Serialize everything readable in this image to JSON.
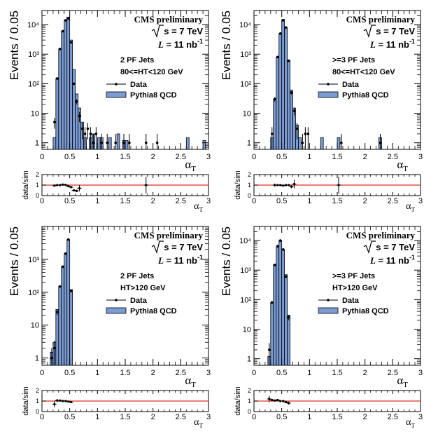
{
  "chart_data": [
    {
      "type": "bar",
      "panel": "top-left",
      "title": "",
      "label_cms": "CMS preliminary",
      "label_energy": "s = 7 TeV",
      "label_lumi_pre": "L",
      "label_lumi_val": " = 11 nb",
      "label_lumi_sup": "-1",
      "label_jets": "2 PF Jets",
      "label_cut": "80<=HT<120 GeV",
      "legend_data": "Data",
      "legend_sim": "Pythia8 QCD",
      "ylabel": "Events / 0.05",
      "xlabel": "α",
      "xlabel_sub": "T",
      "yscale": "log",
      "xlim": [
        0,
        3
      ],
      "ylim": [
        0.6,
        30000
      ],
      "ytick_labels": [
        "1",
        "10",
        "10²",
        "10³",
        "10⁴"
      ],
      "xtick_labels": [
        "0",
        "0.5",
        "1",
        "1.5",
        "2",
        "2.5",
        "3"
      ],
      "sim_hist": [
        {
          "x": 0.2,
          "v": 1.5
        },
        {
          "x": 0.25,
          "v": 150
        },
        {
          "x": 0.3,
          "v": 1500
        },
        {
          "x": 0.35,
          "v": 6000
        },
        {
          "x": 0.4,
          "v": 14000
        },
        {
          "x": 0.45,
          "v": 18000
        },
        {
          "x": 0.5,
          "v": 3000
        },
        {
          "x": 0.55,
          "v": 300
        },
        {
          "x": 0.6,
          "v": 45
        },
        {
          "x": 0.65,
          "v": 15
        },
        {
          "x": 0.7,
          "v": 5
        },
        {
          "x": 0.75,
          "v": 1.5
        },
        {
          "x": 0.85,
          "v": 1.5
        },
        {
          "x": 0.9,
          "v": 2
        },
        {
          "x": 1.0,
          "v": 1.5
        },
        {
          "x": 1.05,
          "v": 1.5
        },
        {
          "x": 1.2,
          "v": 1.5
        },
        {
          "x": 1.35,
          "v": 2
        },
        {
          "x": 1.45,
          "v": 1.2
        },
        {
          "x": 1.5,
          "v": 1.2
        },
        {
          "x": 2.6,
          "v": 1.5
        },
        {
          "x": 2.9,
          "v": 1.2
        }
      ],
      "data_points": [
        {
          "x": 0.225,
          "y": 5,
          "e": 2
        },
        {
          "x": 0.275,
          "y": 150,
          "e": 12
        },
        {
          "x": 0.325,
          "y": 1500,
          "e": 40
        },
        {
          "x": 0.375,
          "y": 6000,
          "e": 80
        },
        {
          "x": 0.425,
          "y": 14000,
          "e": 120
        },
        {
          "x": 0.475,
          "y": 16000,
          "e": 130
        },
        {
          "x": 0.525,
          "y": 2500,
          "e": 50
        },
        {
          "x": 0.575,
          "y": 100,
          "e": 10
        },
        {
          "x": 0.625,
          "y": 25,
          "e": 5
        },
        {
          "x": 0.675,
          "y": 8,
          "e": 3
        },
        {
          "x": 0.725,
          "y": 3,
          "e": 1.7
        },
        {
          "x": 0.775,
          "y": 2,
          "e": 1.4
        },
        {
          "x": 0.825,
          "y": 3,
          "e": 1.7
        },
        {
          "x": 0.875,
          "y": 2,
          "e": 1.4
        },
        {
          "x": 0.925,
          "y": 1,
          "e": 1
        },
        {
          "x": 0.975,
          "y": 2,
          "e": 1.4
        },
        {
          "x": 1.075,
          "y": 1,
          "e": 1
        },
        {
          "x": 1.175,
          "y": 1,
          "e": 1
        },
        {
          "x": 1.325,
          "y": 1,
          "e": 1
        },
        {
          "x": 1.475,
          "y": 1,
          "e": 1
        },
        {
          "x": 1.575,
          "y": 1,
          "e": 1
        },
        {
          "x": 1.875,
          "y": 1,
          "e": 1
        },
        {
          "x": 2.075,
          "y": 1,
          "e": 1
        }
      ],
      "ratio": {
        "ylabel": "data/sim",
        "ylim": [
          0,
          2
        ],
        "ytick_labels": [
          "0",
          "1",
          "2"
        ],
        "points": [
          {
            "x": 0.225,
            "y": 0.95,
            "e": 0.1
          },
          {
            "x": 0.275,
            "y": 1.0,
            "e": 0.06
          },
          {
            "x": 0.325,
            "y": 1.0,
            "e": 0.03
          },
          {
            "x": 0.375,
            "y": 1.05,
            "e": 0.02
          },
          {
            "x": 0.425,
            "y": 1.02,
            "e": 0.02
          },
          {
            "x": 0.475,
            "y": 0.9,
            "e": 0.02
          },
          {
            "x": 0.525,
            "y": 0.8,
            "e": 0.03
          },
          {
            "x": 0.575,
            "y": 0.5,
            "e": 0.07
          },
          {
            "x": 0.625,
            "y": 0.45,
            "e": 0.1
          },
          {
            "x": 0.675,
            "y": 0.7,
            "e": 0.3
          },
          {
            "x": 1.875,
            "y": 1.0,
            "e": 0.8
          }
        ]
      }
    },
    {
      "type": "bar",
      "panel": "top-right",
      "title": "",
      "label_cms": "CMS preliminary",
      "label_energy": "s = 7 TeV",
      "label_lumi_pre": "L",
      "label_lumi_val": " = 11 nb",
      "label_lumi_sup": "-1",
      "label_jets": ">=3 PF Jets",
      "label_cut": "80<=HT<120 GeV",
      "legend_data": "Data",
      "legend_sim": "Pythia8 QCD",
      "ylabel": "Events / 0.05",
      "xlabel": "α",
      "xlabel_sub": "T",
      "yscale": "log",
      "xlim": [
        0,
        3
      ],
      "ylim": [
        0.6,
        30000
      ],
      "ytick_labels": [
        "1",
        "10",
        "10²",
        "10³",
        "10⁴"
      ],
      "xtick_labels": [
        "0",
        "0.5",
        "1",
        "1.5",
        "2",
        "2.5",
        "3"
      ],
      "sim_hist": [
        {
          "x": 0.3,
          "v": 1.5
        },
        {
          "x": 0.35,
          "v": 30
        },
        {
          "x": 0.4,
          "v": 800
        },
        {
          "x": 0.45,
          "v": 5000
        },
        {
          "x": 0.5,
          "v": 15000
        },
        {
          "x": 0.55,
          "v": 8000
        },
        {
          "x": 0.6,
          "v": 600
        },
        {
          "x": 0.65,
          "v": 60
        },
        {
          "x": 0.7,
          "v": 15
        },
        {
          "x": 0.75,
          "v": 4
        },
        {
          "x": 0.8,
          "v": 1.5
        },
        {
          "x": 1.2,
          "v": 1.5
        },
        {
          "x": 1.5,
          "v": 1.5
        },
        {
          "x": 2.25,
          "v": 1.5
        }
      ],
      "data_points": [
        {
          "x": 0.325,
          "y": 2,
          "e": 1.4
        },
        {
          "x": 0.375,
          "y": 30,
          "e": 5.5
        },
        {
          "x": 0.425,
          "y": 800,
          "e": 28
        },
        {
          "x": 0.475,
          "y": 5000,
          "e": 70
        },
        {
          "x": 0.525,
          "y": 14000,
          "e": 120
        },
        {
          "x": 0.575,
          "y": 8000,
          "e": 90
        },
        {
          "x": 0.625,
          "y": 600,
          "e": 25
        },
        {
          "x": 0.675,
          "y": 50,
          "e": 7
        },
        {
          "x": 0.725,
          "y": 12,
          "e": 3.5
        },
        {
          "x": 0.775,
          "y": 3,
          "e": 1.7
        },
        {
          "x": 0.875,
          "y": 1,
          "e": 1
        },
        {
          "x": 0.925,
          "y": 2,
          "e": 1.4
        },
        {
          "x": 0.975,
          "y": 2,
          "e": 1.4
        },
        {
          "x": 1.575,
          "y": 1,
          "e": 1
        },
        {
          "x": 2.275,
          "y": 1,
          "e": 1
        }
      ],
      "ratio": {
        "ylabel": "data/sim",
        "ylim": [
          0,
          2
        ],
        "ytick_labels": [
          "0",
          "1",
          "2"
        ],
        "points": [
          {
            "x": 0.375,
            "y": 1.0,
            "e": 0.15
          },
          {
            "x": 0.425,
            "y": 1.0,
            "e": 0.04
          },
          {
            "x": 0.475,
            "y": 1.0,
            "e": 0.02
          },
          {
            "x": 0.525,
            "y": 0.95,
            "e": 0.02
          },
          {
            "x": 0.575,
            "y": 1.0,
            "e": 0.02
          },
          {
            "x": 0.625,
            "y": 1.0,
            "e": 0.05
          },
          {
            "x": 0.675,
            "y": 0.85,
            "e": 0.15
          },
          {
            "x": 0.725,
            "y": 1.1,
            "e": 0.4
          },
          {
            "x": 1.525,
            "y": 1.0,
            "e": 0.8
          }
        ]
      }
    },
    {
      "type": "bar",
      "panel": "bottom-left",
      "title": "",
      "label_cms": "CMS preliminary",
      "label_energy": "s = 7 TeV",
      "label_lumi_pre": "L",
      "label_lumi_val": " = 11 nb",
      "label_lumi_sup": "-1",
      "label_jets": "2 PF Jets",
      "label_cut": "HT>120 GeV",
      "legend_data": "Data",
      "legend_sim": "Pythia8 QCD",
      "ylabel": "Events / 0.05",
      "xlabel": "α",
      "xlabel_sub": "T",
      "yscale": "log",
      "xlim": [
        0,
        3
      ],
      "ylim": [
        0.6,
        10000
      ],
      "ytick_labels": [
        "1",
        "10",
        "10²",
        "10³"
      ],
      "xtick_labels": [
        "0",
        "0.5",
        "1",
        "1.5",
        "2",
        "2.5",
        "3"
      ],
      "sim_hist": [
        {
          "x": 0.15,
          "v": 1.5
        },
        {
          "x": 0.2,
          "v": 3
        },
        {
          "x": 0.25,
          "v": 30
        },
        {
          "x": 0.3,
          "v": 150
        },
        {
          "x": 0.35,
          "v": 600
        },
        {
          "x": 0.4,
          "v": 1500
        },
        {
          "x": 0.45,
          "v": 4000
        },
        {
          "x": 0.5,
          "v": 120
        }
      ],
      "data_points": [
        {
          "x": 0.175,
          "y": 1,
          "e": 1
        },
        {
          "x": 0.225,
          "y": 2,
          "e": 1.4
        },
        {
          "x": 0.275,
          "y": 25,
          "e": 5
        },
        {
          "x": 0.325,
          "y": 150,
          "e": 12
        },
        {
          "x": 0.375,
          "y": 600,
          "e": 25
        },
        {
          "x": 0.425,
          "y": 1500,
          "e": 40
        },
        {
          "x": 0.475,
          "y": 4000,
          "e": 65
        },
        {
          "x": 0.525,
          "y": 110,
          "e": 10
        }
      ],
      "ratio": {
        "ylabel": "data/sim",
        "ylim": [
          0,
          2
        ],
        "ytick_labels": [
          "0",
          "1",
          "2"
        ],
        "points": [
          {
            "x": 0.225,
            "y": 0.7,
            "e": 0.3
          },
          {
            "x": 0.275,
            "y": 1.05,
            "e": 0.15
          },
          {
            "x": 0.325,
            "y": 1.05,
            "e": 0.07
          },
          {
            "x": 0.375,
            "y": 1.0,
            "e": 0.04
          },
          {
            "x": 0.425,
            "y": 1.0,
            "e": 0.03
          },
          {
            "x": 0.475,
            "y": 0.95,
            "e": 0.02
          },
          {
            "x": 0.525,
            "y": 0.9,
            "e": 0.08
          }
        ]
      }
    },
    {
      "type": "bar",
      "panel": "bottom-right",
      "title": "",
      "label_cms": "CMS preliminary",
      "label_energy": "s = 7 TeV",
      "label_lumi_pre": "L",
      "label_lumi_val": " = 11 nb",
      "label_lumi_sup": "-1",
      "label_jets": ">=3 PF Jets",
      "label_cut": "HT>120 GeV",
      "legend_data": "Data",
      "legend_sim": "Pythia8 QCD",
      "ylabel": "Events / 0.05",
      "xlabel": "α",
      "xlabel_sub": "T",
      "yscale": "log",
      "xlim": [
        0,
        3
      ],
      "ylim": [
        0.6,
        30000
      ],
      "ytick_labels": [
        "1",
        "10",
        "10²",
        "10³",
        "10⁴"
      ],
      "xtick_labels": [
        "0",
        "0.5",
        "1",
        "1.5",
        "2",
        "2.5",
        "3"
      ],
      "sim_hist": [
        {
          "x": 0.25,
          "v": 1.2
        },
        {
          "x": 0.3,
          "v": 80
        },
        {
          "x": 0.35,
          "v": 1500
        },
        {
          "x": 0.4,
          "v": 6000
        },
        {
          "x": 0.45,
          "v": 10000
        },
        {
          "x": 0.5,
          "v": 5000
        },
        {
          "x": 0.55,
          "v": 700
        },
        {
          "x": 0.6,
          "v": 30
        }
      ],
      "data_points": [
        {
          "x": 0.275,
          "y": 2,
          "e": 1.4
        },
        {
          "x": 0.325,
          "y": 80,
          "e": 9
        },
        {
          "x": 0.375,
          "y": 1500,
          "e": 40
        },
        {
          "x": 0.425,
          "y": 6500,
          "e": 80
        },
        {
          "x": 0.475,
          "y": 10000,
          "e": 100
        },
        {
          "x": 0.525,
          "y": 5000,
          "e": 70
        },
        {
          "x": 0.575,
          "y": 600,
          "e": 25
        },
        {
          "x": 0.625,
          "y": 25,
          "e": 5
        }
      ],
      "ratio": {
        "ylabel": "data/sim",
        "ylim": [
          0,
          2
        ],
        "ytick_labels": [
          "0",
          "1",
          "2"
        ],
        "points": [
          {
            "x": 0.275,
            "y": 1.2,
            "e": 0.3
          },
          {
            "x": 0.325,
            "y": 1.1,
            "e": 0.1
          },
          {
            "x": 0.375,
            "y": 1.05,
            "e": 0.04
          },
          {
            "x": 0.425,
            "y": 1.1,
            "e": 0.02
          },
          {
            "x": 0.475,
            "y": 1.0,
            "e": 0.02
          },
          {
            "x": 0.525,
            "y": 1.0,
            "e": 0.02
          },
          {
            "x": 0.575,
            "y": 0.9,
            "e": 0.05
          },
          {
            "x": 0.625,
            "y": 0.8,
            "e": 0.15
          }
        ]
      }
    }
  ],
  "colors": {
    "sim_fill": "#7b9bd3",
    "sim_line": "#000000",
    "ratio_line": "#e03020",
    "axis": "#000000",
    "data": "#000000"
  }
}
